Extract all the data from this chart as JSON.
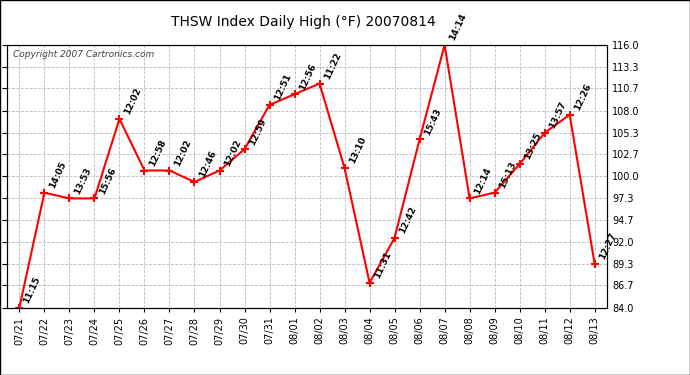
{
  "title": "THSW Index Daily High (°F) 20070814",
  "copyright": "Copyright 2007 Cartronics.com",
  "dates": [
    "07/21",
    "07/22",
    "07/23",
    "07/24",
    "07/25",
    "07/26",
    "07/27",
    "07/28",
    "07/29",
    "07/30",
    "07/31",
    "08/01",
    "08/02",
    "08/03",
    "08/04",
    "08/05",
    "08/06",
    "08/07",
    "08/08",
    "08/09",
    "08/10",
    "08/11",
    "08/12",
    "08/13"
  ],
  "values": [
    84.0,
    98.0,
    97.3,
    97.3,
    107.0,
    100.7,
    100.7,
    99.3,
    100.7,
    103.3,
    108.7,
    110.0,
    111.3,
    101.0,
    87.0,
    92.5,
    104.5,
    116.0,
    97.3,
    98.0,
    101.5,
    105.3,
    107.5,
    89.3
  ],
  "time_labels": [
    "11:15",
    "14:05",
    "13:53",
    "15:56",
    "12:02",
    "12:58",
    "12:02",
    "12:46",
    "12:02",
    "12:59",
    "12:51",
    "12:56",
    "11:22",
    "13:10",
    "11:31",
    "12:42",
    "15:43",
    "14:14",
    "12:14",
    "15:13",
    "13:25",
    "13:57",
    "12:26",
    "12:27"
  ],
  "ylim": [
    84.0,
    116.0
  ],
  "yticks": [
    84.0,
    86.7,
    89.3,
    92.0,
    94.7,
    97.3,
    100.0,
    102.7,
    105.3,
    108.0,
    110.7,
    113.3,
    116.0
  ],
  "line_color": "#ff0000",
  "marker_color": "#ff0000",
  "bg_color": "#ffffff",
  "grid_color": "#bbbbbb",
  "label_color": "#000000",
  "title_fontsize": 10,
  "label_fontsize": 6.5,
  "tick_fontsize": 7,
  "copyright_fontsize": 6.5
}
